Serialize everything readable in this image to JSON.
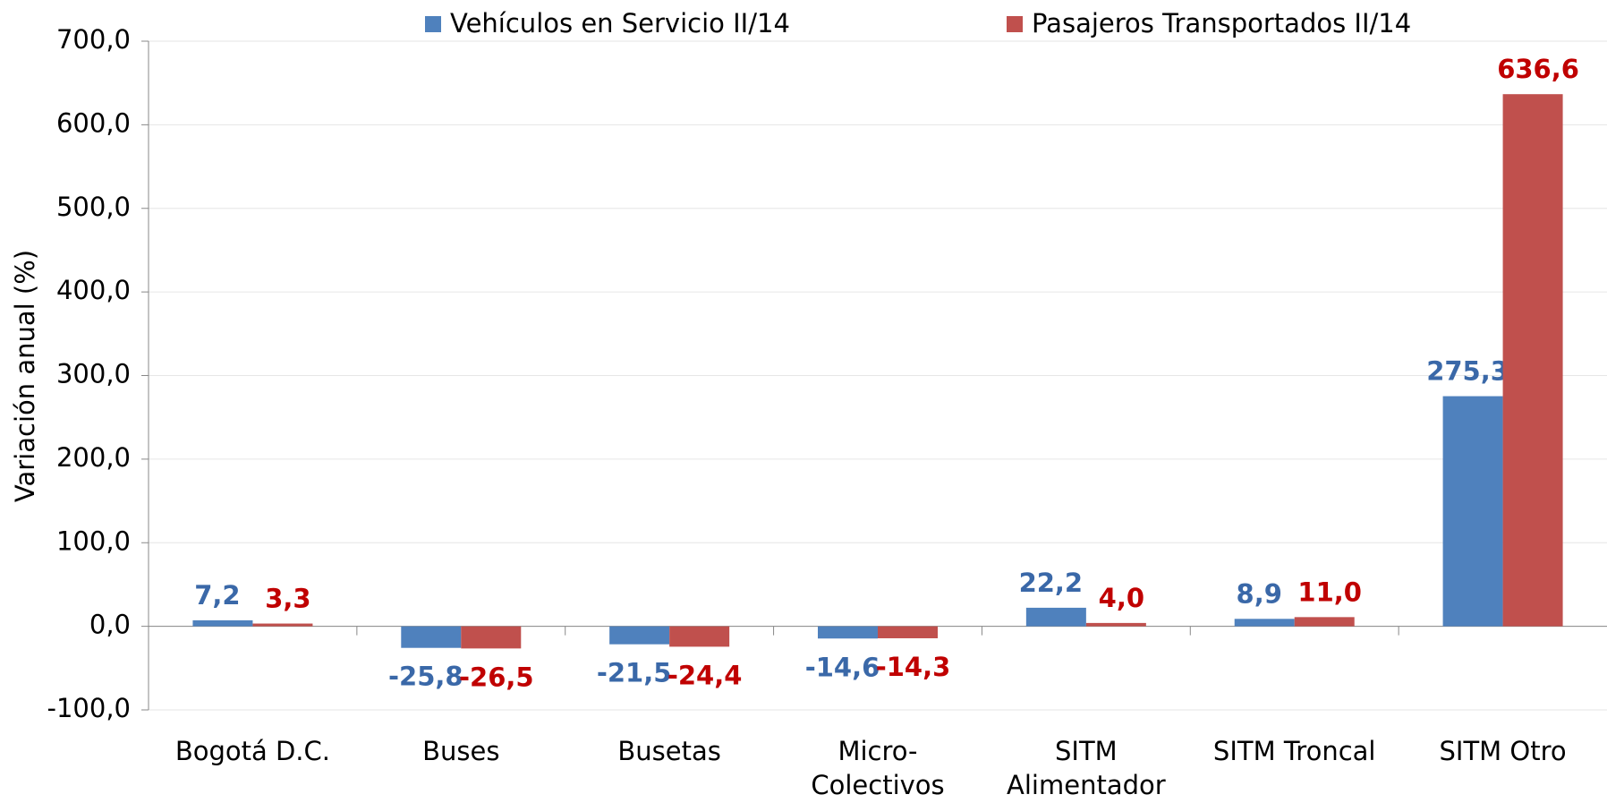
{
  "chart_data": {
    "type": "bar",
    "y_label": "Variación anual (%)",
    "categories": [
      "Bogotá D.C.",
      "Buses",
      "Busetas",
      "Micro-\nColectivos",
      "SITM\nAlimentador",
      "SITM Troncal",
      "SITM Otro"
    ],
    "series": [
      {
        "name": "Vehículos en Servicio II/14",
        "color": "#4f81bd",
        "label_color": "#3a68a8",
        "values": [
          7.2,
          -25.8,
          -21.5,
          -14.6,
          22.2,
          8.9,
          275.3
        ],
        "value_labels": [
          "7,2",
          "-25,8",
          "-21,5",
          "-14,6",
          "22,2",
          "8,9",
          "275,3"
        ]
      },
      {
        "name": "Pasajeros Transportados II/14",
        "color": "#c0504d",
        "label_color": "#c00000",
        "values": [
          3.3,
          -26.5,
          -24.4,
          -14.3,
          4.0,
          11.0,
          636.6
        ],
        "value_labels": [
          "3,3",
          "-26,5",
          "-24,4",
          "-14,3",
          "4,0",
          "11,0",
          "636,6"
        ]
      }
    ],
    "ylim": [
      -100,
      700
    ],
    "yticks": [
      {
        "value": -100,
        "label": "-100,0"
      },
      {
        "value": 0,
        "label": "0,0"
      },
      {
        "value": 100,
        "label": "100,0"
      },
      {
        "value": 200,
        "label": "200,0"
      },
      {
        "value": 300,
        "label": "300,0"
      },
      {
        "value": 400,
        "label": "400,0"
      },
      {
        "value": 500,
        "label": "500,0"
      },
      {
        "value": 600,
        "label": "600,0"
      },
      {
        "value": 700,
        "label": "700,0"
      }
    ],
    "grid": true,
    "legend": "top"
  }
}
